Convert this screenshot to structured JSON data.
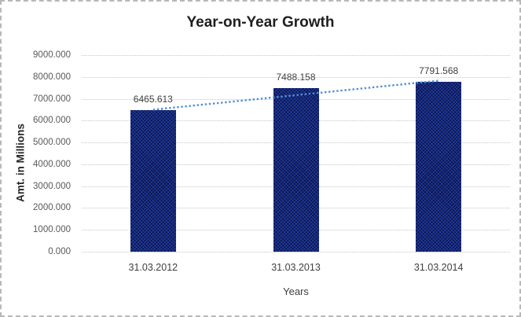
{
  "chart_data": {
    "type": "bar",
    "title": "Year-on-Year Growth",
    "xlabel": "Years",
    "ylabel": "Amt. in Millions",
    "categories": [
      "31.03.2012",
      "31.03.2013",
      "31.03.2014"
    ],
    "values": [
      6465.613,
      7488.158,
      7791.568
    ],
    "data_labels": [
      "6465.613",
      "7488.158",
      "7791.568"
    ],
    "yticks": [
      "9000.000",
      "8000.000",
      "7000.000",
      "6000.000",
      "5000.000",
      "4000.000",
      "3000.000",
      "2000.000",
      "1000.000",
      "0.000"
    ],
    "ylim": [
      0,
      9000
    ],
    "grid": true,
    "legend": "none",
    "trendline": {
      "type": "linear",
      "style": "dotted"
    },
    "colors": {
      "bar_fill": "#0d1547",
      "bar_pattern": "rgba(43,82,215,0.5)",
      "gridline": "#c6c6c6",
      "trendline": "#4f91d5",
      "title_text": "#1f1f1f",
      "tick_text": "#595959",
      "label_text": "#404040"
    }
  }
}
